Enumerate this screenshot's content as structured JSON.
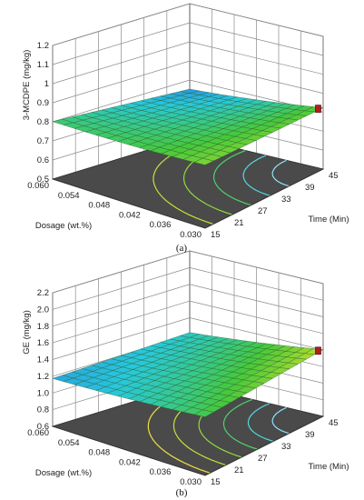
{
  "chart_data": [
    {
      "type": "surface3d",
      "panel_label": "(a)",
      "zlabel": "3-MCDPE (mg/kg)",
      "xlabel": "Time (Min)",
      "ylabel": "Dosage (wt.%)",
      "x_ticks": [
        "15",
        "21",
        "27",
        "33",
        "39",
        "45"
      ],
      "y_ticks": [
        "0.030",
        "0.036",
        "0.042",
        "0.048",
        "0.054",
        "0.060"
      ],
      "z_ticks": [
        "0.5",
        "0.6",
        "0.7",
        "0.8",
        "0.9",
        "1",
        "1.1",
        "1.2"
      ],
      "x_range": [
        15,
        45
      ],
      "y_range": [
        0.03,
        0.06
      ],
      "zlim": [
        0.5,
        1.2
      ],
      "surface_z_range": [
        0.73,
        0.87
      ],
      "contour_levels": 5
    },
    {
      "type": "surface3d",
      "panel_label": "(b)",
      "zlabel": "GE (mg/kg)",
      "xlabel": "Time (Min)",
      "ylabel": "Dosage (wt.%)",
      "x_ticks": [
        "15",
        "21",
        "27",
        "33",
        "39",
        "45"
      ],
      "y_ticks": [
        "0.030",
        "0.036",
        "0.042",
        "0.048",
        "0.054",
        "0.060"
      ],
      "z_ticks": [
        "0.6",
        "0.8",
        "1.0",
        "1.2",
        "1.4",
        "1.6",
        "1.8",
        "2.0",
        "2.2"
      ],
      "x_range": [
        15,
        45
      ],
      "y_range": [
        0.03,
        0.06
      ],
      "zlim": [
        0.6,
        2.2
      ],
      "surface_z_range": [
        1.1,
        1.45
      ],
      "contour_levels": 6
    }
  ]
}
